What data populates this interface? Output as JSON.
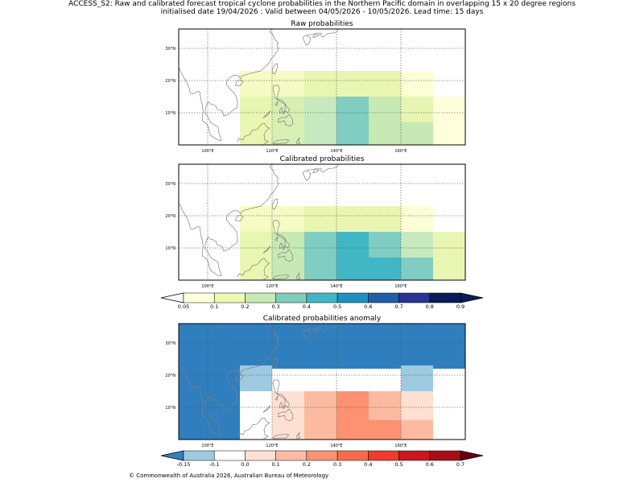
{
  "header": {
    "line1": "ACCESS_S2: Raw and calibrated forecast tropical cyclone probabilities in the Northern Pacific domain in overlapping 15 x 20 degree regions",
    "line2": "initialised date 19/04/2026 :  Valid between 04/05/2026 - 10/05/2026. Lead time: 15 days"
  },
  "axes": {
    "lat_labels": [
      "30°N",
      "20°N",
      "10°N"
    ],
    "lon_labels": [
      "100°E",
      "120°E",
      "140°E",
      "160°E"
    ]
  },
  "panels": [
    {
      "title": "Raw probabilities",
      "cells": [
        {
          "lon": [
            110,
            130
          ],
          "lat": [
            15,
            23
          ],
          "color": "#f5fbc3"
        },
        {
          "lon": [
            130,
            160
          ],
          "lat": [
            15,
            23
          ],
          "color": "#e9f6b1"
        },
        {
          "lon": [
            160,
            170
          ],
          "lat": [
            15,
            23
          ],
          "color": "#fcfed5"
        },
        {
          "lon": [
            110,
            120
          ],
          "lat": [
            0,
            15
          ],
          "color": "#e9f6b1"
        },
        {
          "lon": [
            120,
            130
          ],
          "lat": [
            0,
            15
          ],
          "color": "#d7efb3"
        },
        {
          "lon": [
            130,
            140
          ],
          "lat": [
            0,
            15
          ],
          "color": "#c7e9c0"
        },
        {
          "lon": [
            140,
            150
          ],
          "lat": [
            0,
            15
          ],
          "color": "#80cdc1"
        },
        {
          "lon": [
            150,
            160
          ],
          "lat": [
            0,
            15
          ],
          "color": "#c7e9b4"
        },
        {
          "lon": [
            160,
            170
          ],
          "lat": [
            7,
            15
          ],
          "color": "#e6f5b0"
        },
        {
          "lon": [
            160,
            170
          ],
          "lat": [
            0,
            7
          ],
          "color": "#c7e9b4"
        },
        {
          "lon": [
            170,
            180
          ],
          "lat": [
            0,
            15
          ],
          "color": "#ffffd9"
        }
      ]
    },
    {
      "title": "Calibrated probabilities",
      "cells": [
        {
          "lon": [
            110,
            130
          ],
          "lat": [
            15,
            23
          ],
          "color": "#f5fbc3"
        },
        {
          "lon": [
            130,
            160
          ],
          "lat": [
            15,
            23
          ],
          "color": "#e9f6b1"
        },
        {
          "lon": [
            160,
            170
          ],
          "lat": [
            15,
            23
          ],
          "color": "#fcfed5"
        },
        {
          "lon": [
            110,
            120
          ],
          "lat": [
            0,
            15
          ],
          "color": "#e9f6b1"
        },
        {
          "lon": [
            120,
            130
          ],
          "lat": [
            0,
            15
          ],
          "color": "#c7e9b4"
        },
        {
          "lon": [
            130,
            140
          ],
          "lat": [
            0,
            15
          ],
          "color": "#80cdc1"
        },
        {
          "lon": [
            140,
            150
          ],
          "lat": [
            0,
            15
          ],
          "color": "#41b6c4"
        },
        {
          "lon": [
            150,
            160
          ],
          "lat": [
            7,
            15
          ],
          "color": "#80cdc1"
        },
        {
          "lon": [
            150,
            160
          ],
          "lat": [
            0,
            7
          ],
          "color": "#41b6c4"
        },
        {
          "lon": [
            160,
            170
          ],
          "lat": [
            7,
            15
          ],
          "color": "#c7e9c0"
        },
        {
          "lon": [
            160,
            170
          ],
          "lat": [
            0,
            7
          ],
          "color": "#80cdc1"
        },
        {
          "lon": [
            170,
            180
          ],
          "lat": [
            0,
            15
          ],
          "color": "#e9f6b1"
        }
      ]
    },
    {
      "title": "Calibrated probabilities anomaly",
      "background": "#2f7fbf",
      "cells": [
        {
          "lon": [
            110,
            120
          ],
          "lat": [
            15,
            23
          ],
          "color": "#9ecae1"
        },
        {
          "lon": [
            120,
            160
          ],
          "lat": [
            15,
            22
          ],
          "color": "#ffffff"
        },
        {
          "lon": [
            160,
            170
          ],
          "lat": [
            15,
            23
          ],
          "color": "#9ecae1"
        },
        {
          "lon": [
            170,
            180
          ],
          "lat": [
            15,
            22
          ],
          "color": "#ffffff"
        },
        {
          "lon": [
            110,
            120
          ],
          "lat": [
            0,
            15
          ],
          "color": "#ffffff"
        },
        {
          "lon": [
            120,
            130
          ],
          "lat": [
            0,
            15
          ],
          "color": "#fee0d2"
        },
        {
          "lon": [
            130,
            140
          ],
          "lat": [
            0,
            15
          ],
          "color": "#fcbba1"
        },
        {
          "lon": [
            140,
            150
          ],
          "lat": [
            0,
            15
          ],
          "color": "#fc9272"
        },
        {
          "lon": [
            150,
            160
          ],
          "lat": [
            6,
            15
          ],
          "color": "#fcbba1"
        },
        {
          "lon": [
            150,
            160
          ],
          "lat": [
            0,
            6
          ],
          "color": "#fc9272"
        },
        {
          "lon": [
            160,
            170
          ],
          "lat": [
            6,
            15
          ],
          "color": "#fee0d2"
        },
        {
          "lon": [
            160,
            170
          ],
          "lat": [
            0,
            6
          ],
          "color": "#fcbba1"
        },
        {
          "lon": [
            170,
            180
          ],
          "lat": [
            0,
            15
          ],
          "color": "#ffffff"
        }
      ]
    }
  ],
  "colorbars": [
    {
      "name": "probability-colorbar",
      "labels": [
        "0.05",
        "0.1",
        "0.2",
        "0.3",
        "0.4",
        "0.5",
        "0.6",
        "0.7",
        "0.8",
        "0.9"
      ],
      "under": "#ffffff",
      "over": "#081d58",
      "colors": [
        "#ffffd9",
        "#edf8b1",
        "#c7e9b4",
        "#7fcdbb",
        "#41b6c4",
        "#1d91c0",
        "#225ea8",
        "#253494",
        "#081d58"
      ]
    },
    {
      "name": "anomaly-colorbar",
      "labels": [
        "-0.15",
        "-0.1",
        "0.0",
        "0.1",
        "0.2",
        "0.3",
        "0.4",
        "0.5",
        "0.6",
        "0.7"
      ],
      "under": "#3182bd",
      "over": "#67000d",
      "colors": [
        "#9ecae1",
        "#ffffff",
        "#fee0d2",
        "#fcbba1",
        "#fc9272",
        "#fb6a4a",
        "#ef3b2c",
        "#cb181d",
        "#a50f15"
      ]
    }
  ],
  "footer": {
    "copyright": "© Commonwealth of Australia 2026, Australian Bureau of Meteorology"
  }
}
